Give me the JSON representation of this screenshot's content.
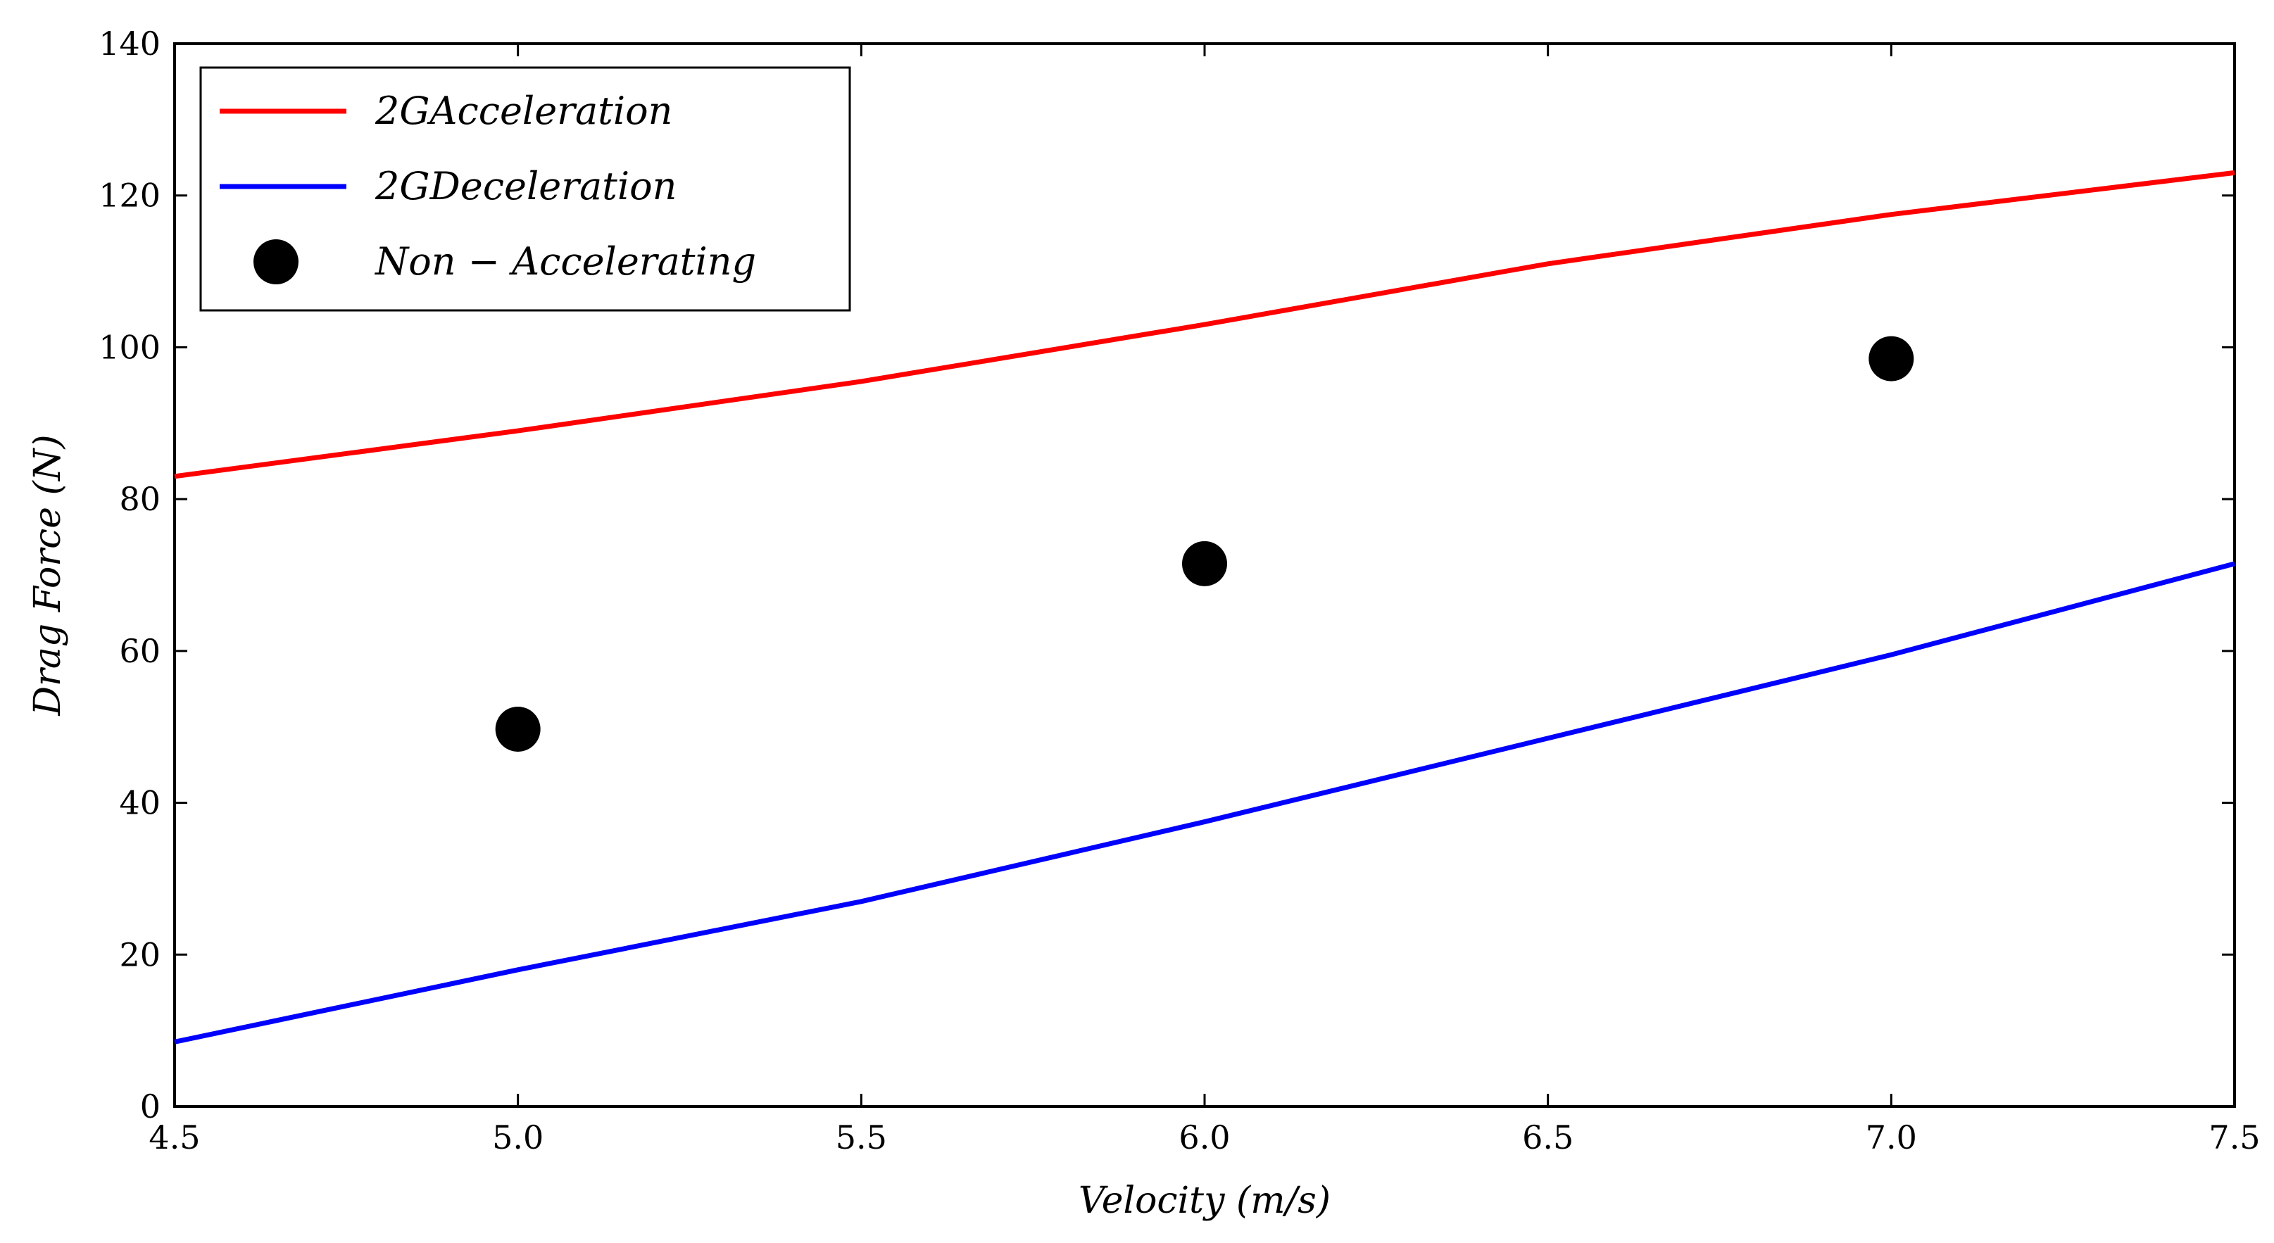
{
  "chart_data": {
    "type": "line",
    "title": "",
    "xlabel": "Velocity (m/s)",
    "ylabel": "Drag Force (N)",
    "xlim": [
      4.5,
      7.5
    ],
    "ylim": [
      0,
      140
    ],
    "xticks": [
      "4.5",
      "5.0",
      "5.5",
      "6.0",
      "6.5",
      "7.0",
      "7.5"
    ],
    "yticks": [
      "0",
      "20",
      "40",
      "60",
      "80",
      "100",
      "120",
      "140"
    ],
    "grid": false,
    "legend_position": "top-left",
    "series": [
      {
        "name": "2G Acceleration",
        "legend_label": "2GAcceleration",
        "kind": "line",
        "color": "#ff0000",
        "x": [
          4.5,
          5.0,
          5.5,
          6.0,
          6.5,
          7.0,
          7.5
        ],
        "y": [
          83.0,
          89.0,
          95.5,
          103.0,
          111.0,
          117.5,
          123.0
        ]
      },
      {
        "name": "2G Deceleration",
        "legend_label": "2GDeceleration",
        "kind": "line",
        "color": "#0000ff",
        "x": [
          4.5,
          5.0,
          5.5,
          6.0,
          6.5,
          7.0,
          7.5
        ],
        "y": [
          8.5,
          18.0,
          27.0,
          37.5,
          48.5,
          59.5,
          71.5
        ]
      },
      {
        "name": "Non-Accelerating",
        "legend_label": "Non − Accelerating",
        "kind": "scatter",
        "color": "#000000",
        "x": [
          5.0,
          6.0,
          7.0
        ],
        "y": [
          49.7,
          71.5,
          98.5
        ]
      }
    ]
  }
}
